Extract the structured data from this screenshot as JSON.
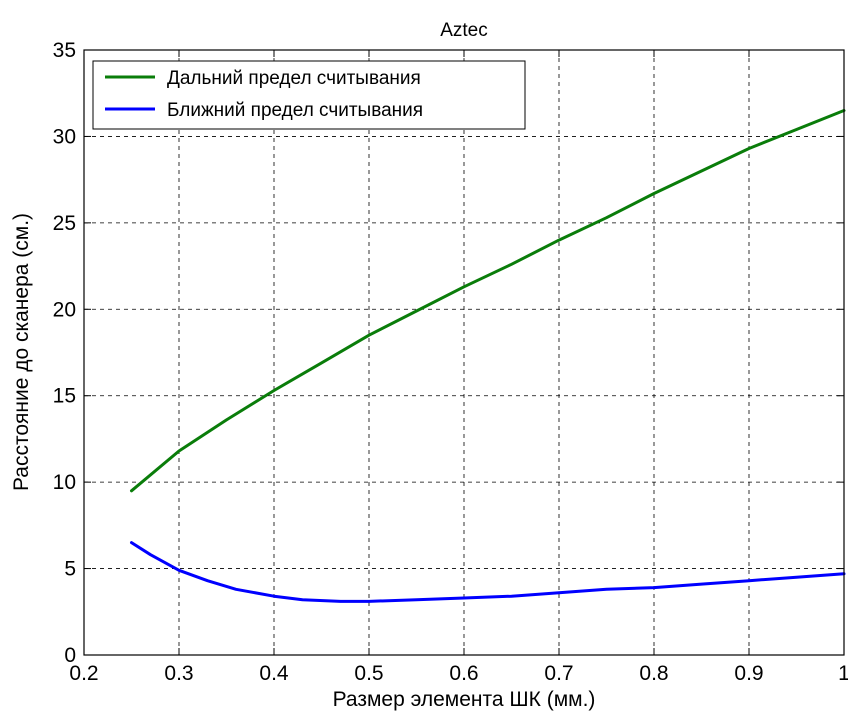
{
  "chart_data": {
    "type": "line",
    "title": "Aztec",
    "xlabel": "Размер элемента ШК (мм.)",
    "ylabel": "Расстояние до сканера (см.)",
    "xlim": [
      0.2,
      1.0
    ],
    "ylim": [
      0,
      35
    ],
    "xticks": [
      "0.2",
      "0.3",
      "0.4",
      "0.5",
      "0.6",
      "0.7",
      "0.8",
      "0.9",
      "1"
    ],
    "yticks": [
      "0",
      "5",
      "10",
      "15",
      "20",
      "25",
      "30",
      "35"
    ],
    "grid": true,
    "grid_style": "dashed",
    "legend_position": "top-left",
    "series": [
      {
        "name": "Дальний предел считывания",
        "color": "#0a7d0a",
        "x": [
          0.25,
          0.3,
          0.35,
          0.4,
          0.45,
          0.5,
          0.55,
          0.6,
          0.65,
          0.7,
          0.75,
          0.8,
          0.85,
          0.9,
          0.95,
          1.0
        ],
        "values": [
          9.5,
          11.8,
          13.6,
          15.3,
          16.9,
          18.5,
          19.9,
          21.3,
          22.6,
          24.0,
          25.3,
          26.7,
          28.0,
          29.3,
          30.4,
          31.5
        ]
      },
      {
        "name": "Ближний предел считывания",
        "color": "#0000ff",
        "x": [
          0.25,
          0.27,
          0.3,
          0.33,
          0.36,
          0.4,
          0.43,
          0.47,
          0.5,
          0.55,
          0.6,
          0.65,
          0.7,
          0.75,
          0.8,
          0.85,
          0.9,
          0.95,
          1.0
        ],
        "values": [
          6.5,
          5.8,
          4.9,
          4.3,
          3.8,
          3.4,
          3.2,
          3.1,
          3.1,
          3.2,
          3.3,
          3.4,
          3.6,
          3.8,
          3.9,
          4.1,
          4.3,
          4.5,
          4.7
        ]
      }
    ]
  }
}
